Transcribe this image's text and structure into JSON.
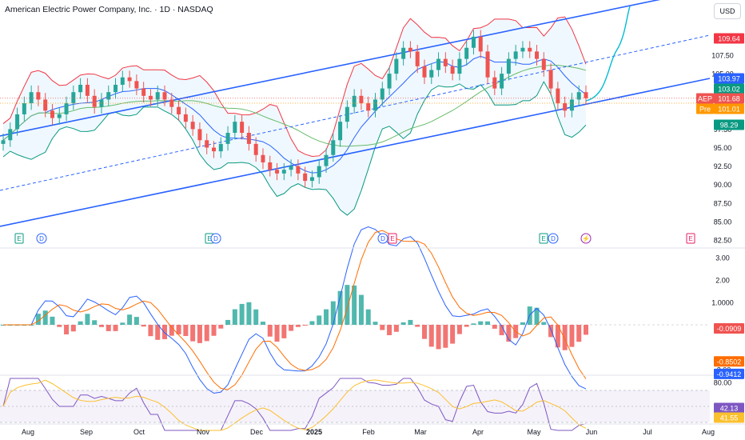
{
  "header": {
    "title": "American Electric Power Company, Inc. · 1D · NASDAQ",
    "currency": "USD"
  },
  "colors": {
    "up": "#26a69a",
    "down": "#ef5350",
    "channel": "#2962ff",
    "bb_upper": "#f23645",
    "bb_lower": "#089981",
    "bb_basis": "#2962ff",
    "ma_long": "#66bb6a",
    "macd": "#2962ff",
    "signal": "#ff6d00",
    "rsi": "#7e57c2",
    "rsi_ma": "#fbc02d",
    "forecast": "#00bcd4"
  },
  "chart_data": [
    {
      "type": "candlestick",
      "pane": "price",
      "y_ticks": [
        "107.50",
        "105.00",
        "97.50",
        "95.00",
        "92.50",
        "90.00",
        "87.50",
        "85.00",
        "82.50"
      ],
      "x_ticks": [
        "Aug",
        "Sep",
        "Oct",
        "Nov",
        "Dec",
        "2025",
        "Feb",
        "Mar",
        "Apr",
        "May",
        "Jun",
        "Jul",
        "Aug"
      ],
      "price_labels": [
        {
          "text": "109.64",
          "color": "#f23645",
          "value": 109.64
        },
        {
          "text": "103.97",
          "color": "#2962ff",
          "value": 103.97
        },
        {
          "text": "103.02",
          "color": "#089981",
          "value": 103.02
        },
        {
          "text": "AEP",
          "color": "#ef5350",
          "value": 101.68
        },
        {
          "text": "101.68",
          "color": "#ef5350",
          "value": 101.68
        },
        {
          "text": "Pre",
          "color": "#ff9800",
          "value": 101.01
        },
        {
          "text": "101.01",
          "color": "#ff9800",
          "value": 101.01
        },
        {
          "text": "98.29",
          "color": "#089981",
          "value": 98.29
        }
      ],
      "event_markers": [
        {
          "kind": "E",
          "month": "Jul",
          "day": 30
        },
        {
          "kind": "D",
          "month": "Aug",
          "day": 8
        },
        {
          "kind": "E",
          "month": "Oct",
          "day": 30
        },
        {
          "kind": "D",
          "month": "Nov",
          "day": 1
        },
        {
          "kind": "D",
          "month": "Feb",
          "day": 7
        },
        {
          "kind": "E",
          "month": "Feb",
          "day": 12
        },
        {
          "kind": "E",
          "month": "May",
          "day": 6
        },
        {
          "kind": "D",
          "month": "May",
          "day": 9
        },
        {
          "kind": "⚡",
          "month": "May",
          "day": 30
        },
        {
          "kind": "E",
          "month": "Jul",
          "day": 30
        }
      ],
      "series": [
        {
          "name": "AEP",
          "values": [
            96.0,
            97.5,
            99.5,
            101.0,
            102.5,
            101.5,
            100.0,
            99.0,
            99.5,
            101.0,
            102.5,
            103.5,
            102.0,
            100.5,
            101.5,
            102.5,
            103.5,
            104.5,
            104.0,
            103.0,
            102.0,
            101.5,
            102.5,
            101.5,
            100.5,
            99.5,
            98.5,
            97.5,
            96.0,
            95.0,
            94.5,
            95.5,
            97.0,
            98.5,
            97.0,
            95.5,
            94.0,
            93.0,
            92.0,
            91.5,
            92.0,
            92.5,
            91.5,
            90.5,
            91.0,
            92.5,
            94.0,
            96.0,
            98.5,
            100.5,
            102.0,
            101.0,
            100.0,
            101.5,
            103.0,
            105.0,
            107.0,
            108.5,
            108.0,
            106.0,
            104.5,
            105.5,
            107.0,
            106.0,
            105.0,
            107.0,
            108.5,
            110.0,
            108.0,
            104.5,
            103.0,
            105.0,
            107.0,
            108.0,
            108.5,
            108.0,
            107.0,
            105.5,
            103.0,
            101.0,
            100.0,
            101.5,
            102.5,
            101.68
          ]
        }
      ]
    },
    {
      "type": "macd",
      "pane": "macd",
      "y_ticks": [
        "3.00",
        "2.00",
        "1.0000",
        "-2.00"
      ],
      "value_labels": [
        {
          "text": "-0.0909",
          "color": "#ef5350",
          "value": -0.0909
        },
        {
          "text": "-0.8502",
          "color": "#ff6d00",
          "value": -0.8502
        },
        {
          "text": "-0.9412",
          "color": "#2962ff",
          "value": -0.9412
        }
      ]
    },
    {
      "type": "rsi",
      "pane": "rsi",
      "y_ticks": [
        "80.00"
      ],
      "value_labels": [
        {
          "text": "42.13",
          "color": "#7e57c2",
          "value": 42.13
        },
        {
          "text": "41.55",
          "color": "#fbc02d",
          "value": 41.55
        }
      ]
    }
  ]
}
